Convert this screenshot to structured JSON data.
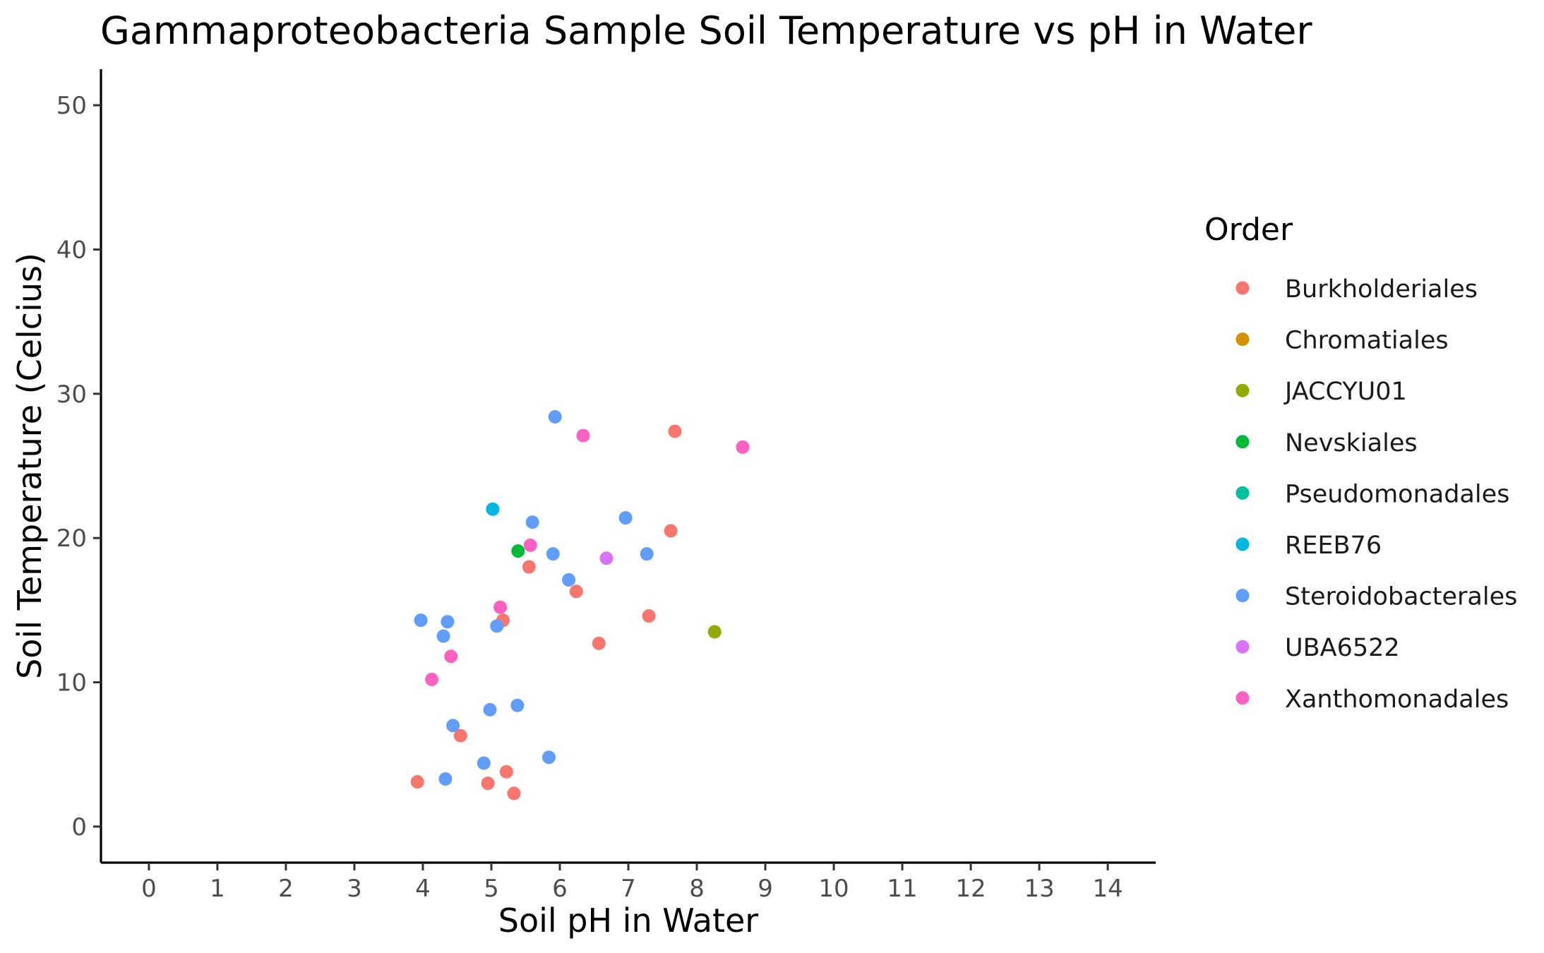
{
  "chart_data": {
    "type": "scatter",
    "title": "Gammaproteobacteria Sample Soil Temperature vs pH in Water",
    "xlabel": "Soil pH in Water",
    "ylabel": "Soil Temperature (Celcius)",
    "xlim": [
      -0.7,
      14.7
    ],
    "ylim": [
      -2.5,
      52.5
    ],
    "xticks": [
      0,
      1,
      2,
      3,
      4,
      5,
      6,
      7,
      8,
      9,
      10,
      11,
      12,
      13,
      14
    ],
    "yticks": [
      0,
      10,
      20,
      30,
      40,
      50
    ],
    "grid": false,
    "legend": {
      "title": "Order",
      "position": "right",
      "entries": [
        {
          "name": "Burkholderiales",
          "color": "#F8766D"
        },
        {
          "name": "Chromatiales",
          "color": "#D39200"
        },
        {
          "name": "JACCYU01",
          "color": "#93AA00"
        },
        {
          "name": "Nevskiales",
          "color": "#00BA38"
        },
        {
          "name": "Pseudomonadales",
          "color": "#00C19F"
        },
        {
          "name": "REEB76",
          "color": "#00B9E3"
        },
        {
          "name": "Steroidobacterales",
          "color": "#619CFF"
        },
        {
          "name": "UBA6522",
          "color": "#DB72FB"
        },
        {
          "name": "Xanthomonadales",
          "color": "#FF61C3"
        }
      ]
    },
    "series": [
      {
        "name": "Burkholderiales",
        "points": [
          [
            7.68,
            27.4
          ],
          [
            7.62,
            20.5
          ],
          [
            5.55,
            18.0
          ],
          [
            6.24,
            16.3
          ],
          [
            5.17,
            14.3
          ],
          [
            7.3,
            14.6
          ],
          [
            6.57,
            12.7
          ],
          [
            4.55,
            6.3
          ],
          [
            3.92,
            3.1
          ],
          [
            4.95,
            3.0
          ],
          [
            5.22,
            3.8
          ],
          [
            5.33,
            2.3
          ]
        ]
      },
      {
        "name": "Chromatiales",
        "points": []
      },
      {
        "name": "JACCYU01",
        "points": [
          [
            8.26,
            13.5
          ]
        ]
      },
      {
        "name": "Nevskiales",
        "points": [
          [
            5.39,
            19.1
          ]
        ]
      },
      {
        "name": "Pseudomonadales",
        "points": []
      },
      {
        "name": "REEB76",
        "points": [
          [
            5.02,
            22.0
          ]
        ]
      },
      {
        "name": "Steroidobacterales",
        "points": [
          [
            5.93,
            28.4
          ],
          [
            5.6,
            21.1
          ],
          [
            6.96,
            21.4
          ],
          [
            5.9,
            18.9
          ],
          [
            7.27,
            18.9
          ],
          [
            6.13,
            17.1
          ],
          [
            3.97,
            14.3
          ],
          [
            4.36,
            14.2
          ],
          [
            4.3,
            13.2
          ],
          [
            5.08,
            13.9
          ],
          [
            4.44,
            7.0
          ],
          [
            4.98,
            8.1
          ],
          [
            5.38,
            8.4
          ],
          [
            4.89,
            4.4
          ],
          [
            5.84,
            4.8
          ],
          [
            4.33,
            3.3
          ]
        ]
      },
      {
        "name": "UBA6522",
        "points": [
          [
            6.68,
            18.6
          ]
        ]
      },
      {
        "name": "Xanthomonadales",
        "points": [
          [
            6.34,
            27.1
          ],
          [
            8.67,
            26.3
          ],
          [
            5.57,
            19.5
          ],
          [
            5.13,
            15.2
          ],
          [
            4.41,
            11.8
          ],
          [
            4.13,
            10.2
          ]
        ]
      }
    ]
  }
}
